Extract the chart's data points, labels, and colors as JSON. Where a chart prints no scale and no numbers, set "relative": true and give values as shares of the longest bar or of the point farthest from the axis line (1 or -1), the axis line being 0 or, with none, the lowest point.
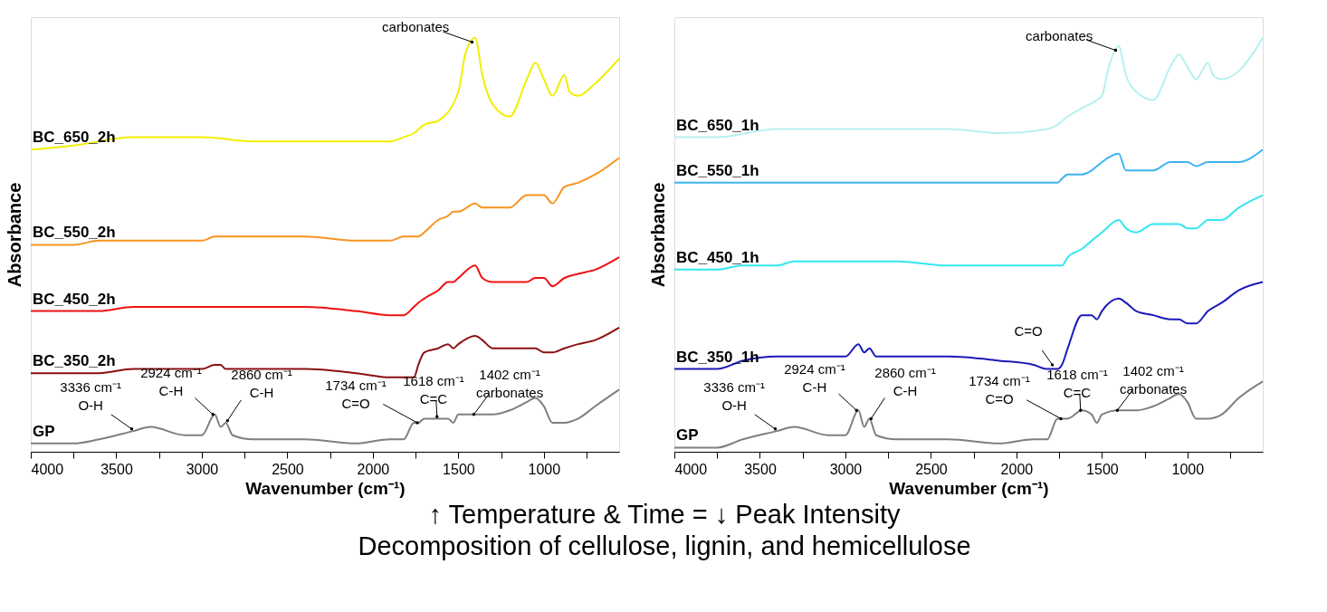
{
  "chart_data": [
    {
      "type": "line",
      "relative": true,
      "xlabel": "Wavenumber (cm⁻¹)",
      "ylabel": "Absorbance",
      "xlim": [
        4000,
        560
      ],
      "xticks": [
        4000,
        {
          "value": 3750,
          "label": null
        },
        3500,
        {
          "value": 3250,
          "label": null
        },
        3000,
        {
          "value": 2750,
          "label": null
        },
        2500,
        {
          "value": 2250,
          "label": null
        },
        2000,
        {
          "value": 1750,
          "label": null
        },
        1500,
        {
          "value": 1250,
          "label": null
        },
        1000,
        {
          "value": 750,
          "label": null
        }
      ],
      "tick_labels": "x",
      "grid": false,
      "legend": false,
      "marker": "none",
      "line_style": "solid",
      "x": [
        4000,
        3750,
        3600,
        3400,
        3300,
        3100,
        3000,
        2924,
        2890,
        2860,
        2820,
        2700,
        2400,
        2100,
        1900,
        1820,
        1760,
        1734,
        1700,
        1618,
        1560,
        1530,
        1500,
        1402,
        1360,
        1300,
        1200,
        1100,
        1050,
        1000,
        950,
        880,
        800,
        700,
        560
      ],
      "series": [
        {
          "name": "GP",
          "color": "#7f7f7f",
          "values": [
            0.02,
            0.02,
            0.03,
            0.05,
            0.06,
            0.04,
            0.04,
            0.09,
            0.06,
            0.07,
            0.04,
            0.03,
            0.03,
            0.02,
            0.03,
            0.03,
            0.07,
            0.07,
            0.08,
            0.08,
            0.08,
            0.07,
            0.09,
            0.09,
            0.09,
            0.09,
            0.1,
            0.12,
            0.13,
            0.11,
            0.07,
            0.07,
            0.08,
            0.11,
            0.15
          ]
        },
        {
          "name": "BC_350_2h",
          "color": "#8b1010",
          "values": [
            0.19,
            0.19,
            0.19,
            0.2,
            0.2,
            0.2,
            0.2,
            0.21,
            0.21,
            0.2,
            0.2,
            0.2,
            0.2,
            0.19,
            0.18,
            0.18,
            0.18,
            0.21,
            0.24,
            0.25,
            0.26,
            0.25,
            0.26,
            0.28,
            0.27,
            0.25,
            0.25,
            0.25,
            0.25,
            0.24,
            0.24,
            0.25,
            0.26,
            0.27,
            0.3
          ]
        },
        {
          "name": "BC_450_2h",
          "color": "#ee1111",
          "values": [
            0.34,
            0.34,
            0.34,
            0.35,
            0.35,
            0.35,
            0.35,
            0.35,
            0.35,
            0.35,
            0.35,
            0.35,
            0.35,
            0.34,
            0.33,
            0.33,
            0.35,
            0.36,
            0.37,
            0.39,
            0.41,
            0.41,
            0.42,
            0.45,
            0.42,
            0.41,
            0.41,
            0.41,
            0.42,
            0.42,
            0.4,
            0.42,
            0.43,
            0.44,
            0.47
          ]
        },
        {
          "name": "BC_550_2h",
          "color": "#f7931e",
          "values": [
            0.5,
            0.5,
            0.51,
            0.51,
            0.51,
            0.51,
            0.51,
            0.52,
            0.52,
            0.52,
            0.52,
            0.52,
            0.52,
            0.51,
            0.51,
            0.52,
            0.52,
            0.52,
            0.53,
            0.56,
            0.57,
            0.58,
            0.58,
            0.6,
            0.59,
            0.59,
            0.59,
            0.62,
            0.62,
            0.62,
            0.6,
            0.64,
            0.65,
            0.67,
            0.71
          ]
        },
        {
          "name": "BC_650_2h",
          "color": "#f2ee00",
          "x": [
            4000,
            3750,
            3400,
            3100,
            3000,
            2700,
            2400,
            2100,
            1900,
            1820,
            1760,
            1700,
            1618,
            1500,
            1460,
            1402,
            1360,
            1300,
            1200,
            1100,
            1050,
            1000,
            950,
            880,
            850,
            800,
            700,
            560
          ],
          "values": [
            0.73,
            0.74,
            0.76,
            0.76,
            0.76,
            0.75,
            0.75,
            0.75,
            0.75,
            0.76,
            0.77,
            0.79,
            0.8,
            0.87,
            0.96,
            1.0,
            0.91,
            0.84,
            0.81,
            0.9,
            0.94,
            0.9,
            0.86,
            0.91,
            0.87,
            0.86,
            0.89,
            0.95
          ]
        }
      ],
      "annotations": [
        {
          "text": "carbonates",
          "x": 1420,
          "y": 0.99
        },
        {
          "text": "3336 cm⁻¹\nO-H",
          "x": 3410,
          "y": 0.055
        },
        {
          "text": "2924 cm⁻¹\nC-H",
          "x": 2935,
          "y": 0.09
        },
        {
          "text": "2860 cm⁻¹\nC-H",
          "x": 2850,
          "y": 0.075
        },
        {
          "text": "1734 cm⁻¹\nC=O",
          "x": 1740,
          "y": 0.07
        },
        {
          "text": "1618 cm⁻¹\nC=C",
          "x": 1625,
          "y": 0.085
        },
        {
          "text": "1402 cm⁻¹\ncarbonates",
          "x": 1410,
          "y": 0.09
        },
        "↑ Temperature  & Time = ↓ Peak Intensity",
        "Decomposition of cellulose, lignin, and hemicellulose"
      ]
    },
    {
      "type": "line",
      "relative": true,
      "xlabel": "Wavenumber (cm⁻¹)",
      "ylabel": "Absorbance",
      "xlim": [
        4000,
        560
      ],
      "xticks": [
        4000,
        {
          "value": 3750,
          "label": null
        },
        3500,
        {
          "value": 3250,
          "label": null
        },
        3000,
        {
          "value": 2750,
          "label": null
        },
        2500,
        {
          "value": 2250,
          "label": null
        },
        2000,
        {
          "value": 1750,
          "label": null
        },
        1500,
        {
          "value": 1250,
          "label": null
        },
        1000,
        {
          "value": 750,
          "label": null
        }
      ],
      "tick_labels": "x",
      "grid": false,
      "legend": false,
      "marker": "none",
      "line_style": "solid",
      "x": [
        4000,
        3750,
        3600,
        3400,
        3300,
        3100,
        3000,
        2924,
        2890,
        2860,
        2820,
        2700,
        2400,
        2100,
        1900,
        1820,
        1760,
        1734,
        1700,
        1618,
        1560,
        1530,
        1500,
        1402,
        1360,
        1300,
        1200,
        1100,
        1050,
        1000,
        950,
        880,
        800,
        700,
        560
      ],
      "series": [
        {
          "name": "GP",
          "color": "#7f7f7f",
          "values": [
            0.01,
            0.01,
            0.03,
            0.05,
            0.06,
            0.04,
            0.04,
            0.1,
            0.06,
            0.08,
            0.04,
            0.03,
            0.03,
            0.02,
            0.03,
            0.03,
            0.08,
            0.08,
            0.08,
            0.1,
            0.09,
            0.07,
            0.09,
            0.1,
            0.1,
            0.1,
            0.11,
            0.13,
            0.14,
            0.12,
            0.08,
            0.08,
            0.09,
            0.13,
            0.17
          ]
        },
        {
          "name": "BC_350_1h",
          "color": "#1a1ab8",
          "values": [
            0.2,
            0.2,
            0.22,
            0.23,
            0.23,
            0.23,
            0.23,
            0.26,
            0.24,
            0.25,
            0.23,
            0.23,
            0.23,
            0.22,
            0.21,
            0.2,
            0.2,
            0.21,
            0.25,
            0.33,
            0.33,
            0.32,
            0.34,
            0.37,
            0.36,
            0.34,
            0.33,
            0.32,
            0.32,
            0.31,
            0.31,
            0.34,
            0.36,
            0.39,
            0.41
          ]
        },
        {
          "name": "BC_450_1h",
          "color": "#33e6f0",
          "values": [
            0.44,
            0.44,
            0.45,
            0.45,
            0.46,
            0.46,
            0.46,
            0.46,
            0.46,
            0.46,
            0.46,
            0.46,
            0.45,
            0.45,
            0.45,
            0.45,
            0.45,
            0.45,
            0.47,
            0.49,
            0.51,
            0.52,
            0.53,
            0.56,
            0.54,
            0.53,
            0.55,
            0.55,
            0.55,
            0.54,
            0.54,
            0.56,
            0.56,
            0.59,
            0.62
          ]
        },
        {
          "name": "BC_550_1h",
          "color": "#3cb4f0",
          "values": [
            0.65,
            0.65,
            0.65,
            0.65,
            0.65,
            0.65,
            0.65,
            0.65,
            0.65,
            0.65,
            0.65,
            0.65,
            0.65,
            0.65,
            0.65,
            0.65,
            0.65,
            0.66,
            0.67,
            0.67,
            0.68,
            0.69,
            0.7,
            0.72,
            0.68,
            0.68,
            0.68,
            0.7,
            0.7,
            0.7,
            0.69,
            0.7,
            0.7,
            0.7,
            0.73
          ]
        },
        {
          "name": "BC_650_1h",
          "color": "#b8f0f0",
          "x": [
            4000,
            3750,
            3400,
            3100,
            2700,
            2400,
            2100,
            1820,
            1760,
            1700,
            1618,
            1530,
            1500,
            1460,
            1402,
            1360,
            1300,
            1200,
            1100,
            1050,
            1000,
            950,
            880,
            850,
            800,
            700,
            560
          ],
          "values": [
            0.76,
            0.76,
            0.78,
            0.78,
            0.78,
            0.78,
            0.77,
            0.78,
            0.79,
            0.81,
            0.83,
            0.85,
            0.86,
            0.93,
            0.98,
            0.91,
            0.87,
            0.85,
            0.93,
            0.96,
            0.93,
            0.9,
            0.94,
            0.91,
            0.9,
            0.92,
            1.0
          ]
        }
      ],
      "annotations": [
        {
          "text": "carbonates",
          "x": 1420,
          "y": 0.97
        },
        {
          "text": "C=O",
          "x": 1790,
          "y": 0.21
        },
        {
          "text": "3336 cm⁻¹\nO-H",
          "x": 3410,
          "y": 0.055
        },
        {
          "text": "2924 cm⁻¹\nC-H",
          "x": 2935,
          "y": 0.1
        },
        {
          "text": "2860 cm⁻¹\nC-H",
          "x": 2850,
          "y": 0.08
        },
        {
          "text": "1734 cm⁻¹\nC=O",
          "x": 1740,
          "y": 0.08
        },
        {
          "text": "1618 cm⁻¹\nC=C",
          "x": 1625,
          "y": 0.1
        },
        {
          "text": "1402 cm⁻¹\ncarbonates",
          "x": 1410,
          "y": 0.1
        }
      ]
    }
  ]
}
